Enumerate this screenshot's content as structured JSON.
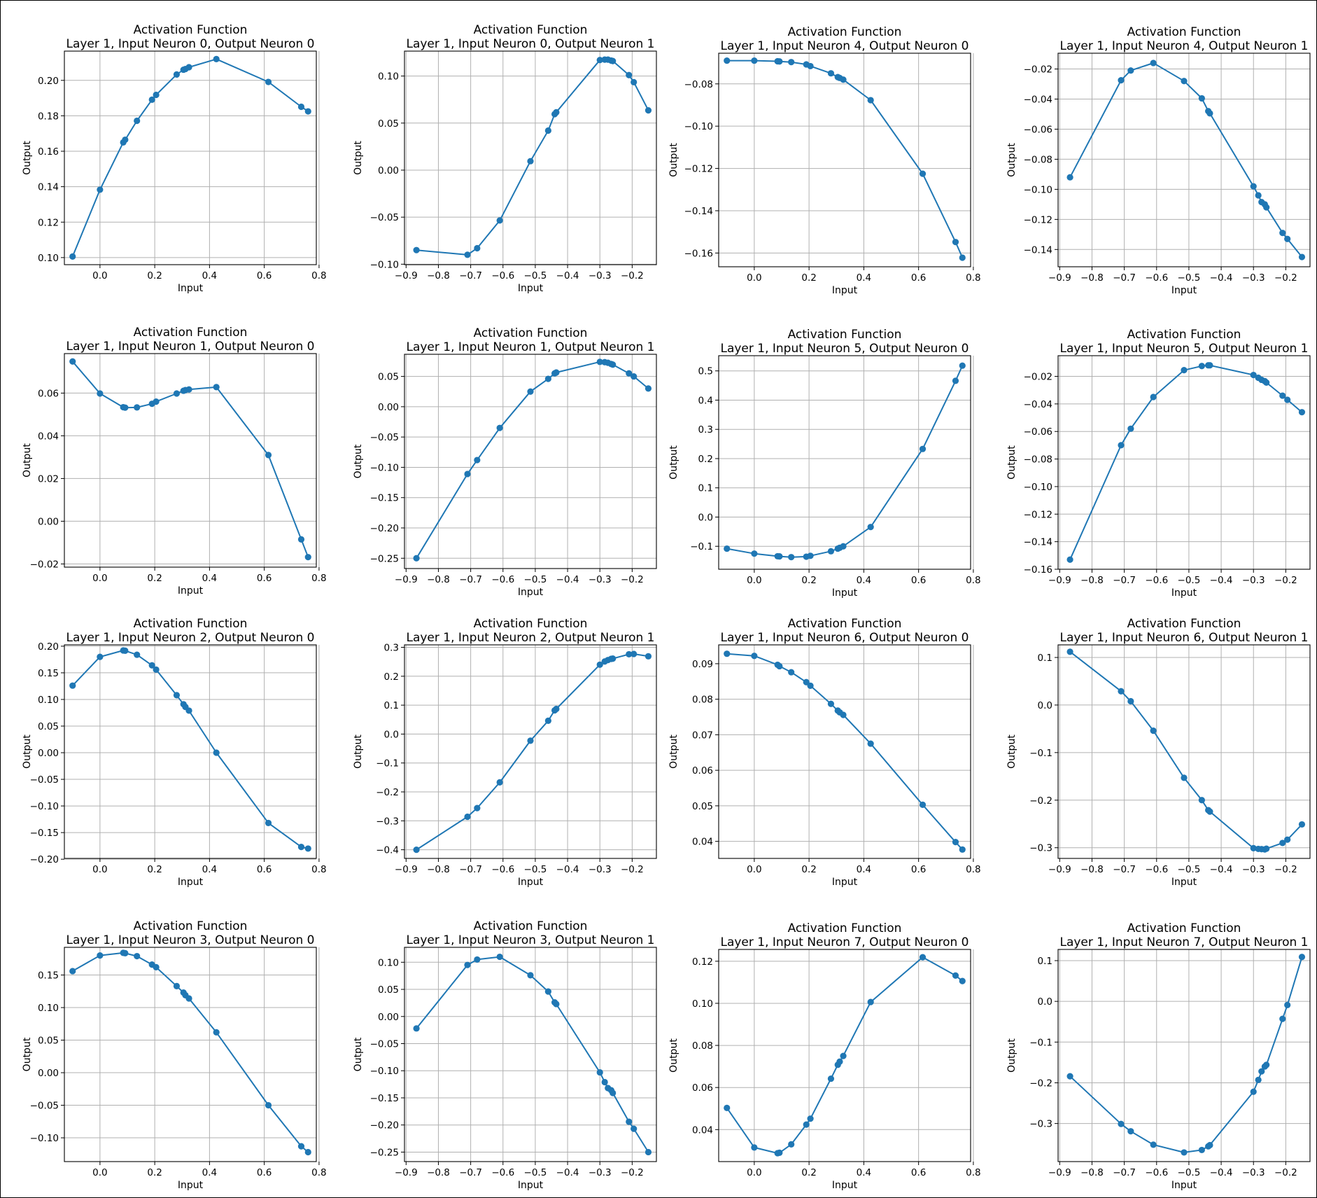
{
  "figure": {
    "title_prefix": "Activation Function",
    "xlabel": "Input",
    "ylabel": "Output"
  },
  "colors": {
    "series": "#1f77b4",
    "grid": "#b0b0b0",
    "axes": "#000000"
  },
  "chart_data": [
    {
      "type": "line",
      "title": "Activation Function",
      "subtitle": "Layer 1, Input Neuron 0, Output Neuron 0",
      "xlabel": "Input",
      "ylabel": "Output",
      "xlim": [
        -0.13,
        0.79
      ],
      "ylim": [
        0.096,
        0.2165
      ],
      "xticks": [
        0.0,
        0.2,
        0.4,
        0.6,
        0.8
      ],
      "yticks": [
        0.1,
        0.12,
        0.14,
        0.16,
        0.18,
        0.2
      ],
      "xdec": 1,
      "ydec": 2,
      "x": [
        -0.1,
        0.0,
        0.085,
        0.092,
        0.135,
        0.19,
        0.205,
        0.28,
        0.305,
        0.312,
        0.325,
        0.425,
        0.615,
        0.735,
        0.76
      ],
      "y": [
        0.1006,
        0.1383,
        0.165,
        0.1665,
        0.1772,
        0.1891,
        0.1918,
        0.2033,
        0.206,
        0.2064,
        0.2074,
        0.212,
        0.1991,
        0.1851,
        0.1825
      ]
    },
    {
      "type": "line",
      "title": "Activation Function",
      "subtitle": "Layer 1, Input Neuron 0, Output Neuron 1",
      "xlabel": "Input",
      "ylabel": "Output",
      "xlim": [
        -0.905,
        -0.125
      ],
      "ylim": [
        -0.1005,
        0.1265
      ],
      "xticks": [
        -0.9,
        -0.8,
        -0.7,
        -0.6,
        -0.5,
        -0.4,
        -0.3,
        -0.2
      ],
      "yticks": [
        -0.1,
        -0.05,
        0.0,
        0.05,
        0.1
      ],
      "xdec": 1,
      "ydec": 2,
      "x": [
        -0.868,
        -0.71,
        -0.68,
        -0.61,
        -0.515,
        -0.46,
        -0.44,
        -0.435,
        -0.3,
        -0.285,
        -0.275,
        -0.265,
        -0.26,
        -0.21,
        -0.195,
        -0.15
      ],
      "y": [
        -0.085,
        -0.09,
        -0.083,
        -0.0535,
        0.0095,
        0.042,
        0.0595,
        0.0615,
        0.117,
        0.1175,
        0.1175,
        0.1165,
        0.116,
        0.101,
        0.0935,
        0.0635
      ]
    },
    {
      "type": "line",
      "title": "Activation Function",
      "subtitle": "Layer 1, Input Neuron 4, Output Neuron 0",
      "xlabel": "Input",
      "ylabel": "Output",
      "xlim": [
        -0.13,
        0.79
      ],
      "ylim": [
        -0.1665,
        -0.0655
      ],
      "xticks": [
        0.0,
        0.2,
        0.4,
        0.6,
        0.8
      ],
      "yticks": [
        -0.16,
        -0.14,
        -0.12,
        -0.1,
        -0.08
      ],
      "xdec": 1,
      "ydec": 2,
      "x": [
        -0.1,
        0.0,
        0.085,
        0.092,
        0.135,
        0.19,
        0.205,
        0.28,
        0.305,
        0.312,
        0.325,
        0.425,
        0.615,
        0.735,
        0.76
      ],
      "y": [
        -0.069,
        -0.069,
        -0.0693,
        -0.0694,
        -0.0697,
        -0.0708,
        -0.0716,
        -0.075,
        -0.0768,
        -0.0772,
        -0.078,
        -0.0877,
        -0.1225,
        -0.1548,
        -0.1622
      ]
    },
    {
      "type": "line",
      "title": "Activation Function",
      "subtitle": "Layer 1, Input Neuron 4, Output Neuron 1",
      "xlabel": "Input",
      "ylabel": "Output",
      "xlim": [
        -0.905,
        -0.125
      ],
      "ylim": [
        -0.1515,
        -0.0095
      ],
      "xticks": [
        -0.9,
        -0.8,
        -0.7,
        -0.6,
        -0.5,
        -0.4,
        -0.3,
        -0.2
      ],
      "yticks": [
        -0.14,
        -0.12,
        -0.1,
        -0.08,
        -0.06,
        -0.04,
        -0.02
      ],
      "xdec": 1,
      "ydec": 2,
      "x": [
        -0.868,
        -0.71,
        -0.68,
        -0.61,
        -0.515,
        -0.46,
        -0.44,
        -0.435,
        -0.3,
        -0.285,
        -0.275,
        -0.265,
        -0.26,
        -0.21,
        -0.195,
        -0.15
      ],
      "y": [
        -0.092,
        -0.0275,
        -0.021,
        -0.016,
        -0.028,
        -0.0395,
        -0.048,
        -0.0495,
        -0.098,
        -0.104,
        -0.1085,
        -0.11,
        -0.112,
        -0.129,
        -0.133,
        -0.145
      ]
    },
    {
      "type": "line",
      "title": "Activation Function",
      "subtitle": "Layer 1, Input Neuron 1, Output Neuron 0",
      "xlabel": "Input",
      "ylabel": "Output",
      "xlim": [
        -0.13,
        0.79
      ],
      "ylim": [
        -0.0215,
        0.0785
      ],
      "xticks": [
        0.0,
        0.2,
        0.4,
        0.6,
        0.8
      ],
      "yticks": [
        -0.02,
        0.0,
        0.02,
        0.04,
        0.06
      ],
      "xdec": 1,
      "ydec": 2,
      "x": [
        -0.1,
        0.0,
        0.085,
        0.092,
        0.135,
        0.19,
        0.205,
        0.28,
        0.305,
        0.312,
        0.325,
        0.425,
        0.615,
        0.735,
        0.76
      ],
      "y": [
        0.0748,
        0.0598,
        0.0534,
        0.0532,
        0.0533,
        0.055,
        0.056,
        0.0598,
        0.0611,
        0.0614,
        0.0617,
        0.0628,
        0.031,
        -0.0085,
        -0.0168
      ]
    },
    {
      "type": "line",
      "title": "Activation Function",
      "subtitle": "Layer 1, Input Neuron 1, Output Neuron 1",
      "xlabel": "Input",
      "ylabel": "Output",
      "xlim": [
        -0.905,
        -0.125
      ],
      "ylim": [
        -0.267,
        0.0865
      ],
      "xticks": [
        -0.9,
        -0.8,
        -0.7,
        -0.6,
        -0.5,
        -0.4,
        -0.3,
        -0.2
      ],
      "yticks": [
        -0.25,
        -0.2,
        -0.15,
        -0.1,
        -0.05,
        0.0,
        0.05
      ],
      "xdec": 1,
      "ydec": 2,
      "x": [
        -0.868,
        -0.71,
        -0.68,
        -0.61,
        -0.515,
        -0.46,
        -0.44,
        -0.435,
        -0.3,
        -0.285,
        -0.275,
        -0.265,
        -0.26,
        -0.21,
        -0.195,
        -0.15
      ],
      "y": [
        -0.25,
        -0.111,
        -0.088,
        -0.035,
        0.025,
        0.046,
        0.055,
        0.0565,
        0.074,
        0.0735,
        0.0725,
        0.0705,
        0.0695,
        0.055,
        0.05,
        0.03
      ]
    },
    {
      "type": "line",
      "title": "Activation Function",
      "subtitle": "Layer 1, Input Neuron 5, Output Neuron 0",
      "xlabel": "Input",
      "ylabel": "Output",
      "xlim": [
        -0.13,
        0.79
      ],
      "ylim": [
        -0.1785,
        0.552
      ],
      "xticks": [
        0.0,
        0.2,
        0.4,
        0.6,
        0.8
      ],
      "yticks": [
        -0.1,
        0.0,
        0.1,
        0.2,
        0.3,
        0.4,
        0.5
      ],
      "xdec": 1,
      "ydec": 1,
      "x": [
        -0.1,
        0.0,
        0.085,
        0.092,
        0.135,
        0.19,
        0.205,
        0.28,
        0.305,
        0.312,
        0.325,
        0.425,
        0.615,
        0.735,
        0.76
      ],
      "y": [
        -0.108,
        -0.125,
        -0.134,
        -0.1345,
        -0.137,
        -0.1355,
        -0.1325,
        -0.117,
        -0.108,
        -0.105,
        -0.1,
        -0.034,
        0.233,
        0.466,
        0.518
      ]
    },
    {
      "type": "line",
      "title": "Activation Function",
      "subtitle": "Layer 1, Input Neuron 5, Output Neuron 1",
      "xlabel": "Input",
      "ylabel": "Output",
      "xlim": [
        -0.905,
        -0.125
      ],
      "ylim": [
        -0.16,
        -0.005
      ],
      "xticks": [
        -0.9,
        -0.8,
        -0.7,
        -0.6,
        -0.5,
        -0.4,
        -0.3,
        -0.2
      ],
      "yticks": [
        -0.16,
        -0.14,
        -0.12,
        -0.1,
        -0.08,
        -0.06,
        -0.04,
        -0.02
      ],
      "xdec": 1,
      "ydec": 2,
      "x": [
        -0.868,
        -0.71,
        -0.68,
        -0.61,
        -0.515,
        -0.46,
        -0.44,
        -0.435,
        -0.3,
        -0.285,
        -0.275,
        -0.265,
        -0.26,
        -0.21,
        -0.195,
        -0.15
      ],
      "y": [
        -0.153,
        -0.07,
        -0.058,
        -0.035,
        -0.0155,
        -0.0125,
        -0.012,
        -0.012,
        -0.019,
        -0.021,
        -0.0225,
        -0.0235,
        -0.0245,
        -0.034,
        -0.037,
        -0.046
      ]
    },
    {
      "type": "line",
      "title": "Activation Function",
      "subtitle": "Layer 1, Input Neuron 2, Output Neuron 0",
      "xlabel": "Input",
      "ylabel": "Output",
      "xlim": [
        -0.13,
        0.79
      ],
      "ylim": [
        -0.1985,
        0.2025
      ],
      "xticks": [
        0.0,
        0.2,
        0.4,
        0.6,
        0.8
      ],
      "yticks": [
        -0.2,
        -0.15,
        -0.1,
        -0.05,
        0.0,
        0.05,
        0.1,
        0.15,
        0.2
      ],
      "xdec": 1,
      "ydec": 2,
      "x": [
        -0.1,
        0.0,
        0.085,
        0.092,
        0.135,
        0.19,
        0.205,
        0.28,
        0.305,
        0.312,
        0.325,
        0.425,
        0.615,
        0.735,
        0.76
      ],
      "y": [
        0.126,
        0.18,
        0.192,
        0.1915,
        0.184,
        0.164,
        0.156,
        0.108,
        0.091,
        0.086,
        0.079,
        0.0,
        -0.132,
        -0.177,
        -0.18
      ]
    },
    {
      "type": "line",
      "title": "Activation Function",
      "subtitle": "Layer 1, Input Neuron 2, Output Neuron 1",
      "xlabel": "Input",
      "ylabel": "Output",
      "xlim": [
        -0.905,
        -0.125
      ],
      "ylim": [
        -0.43,
        0.3085
      ],
      "xticks": [
        -0.9,
        -0.8,
        -0.7,
        -0.6,
        -0.5,
        -0.4,
        -0.3,
        -0.2
      ],
      "yticks": [
        -0.4,
        -0.3,
        -0.2,
        -0.1,
        0.0,
        0.1,
        0.2,
        0.3
      ],
      "xdec": 1,
      "ydec": 1,
      "x": [
        -0.868,
        -0.71,
        -0.68,
        -0.61,
        -0.515,
        -0.46,
        -0.44,
        -0.435,
        -0.3,
        -0.285,
        -0.275,
        -0.265,
        -0.26,
        -0.21,
        -0.195,
        -0.15
      ],
      "y": [
        -0.4,
        -0.286,
        -0.256,
        -0.167,
        -0.023,
        0.046,
        0.082,
        0.087,
        0.24,
        0.251,
        0.256,
        0.26,
        0.261,
        0.276,
        0.277,
        0.269
      ]
    },
    {
      "type": "line",
      "title": "Activation Function",
      "subtitle": "Layer 1, Input Neuron 6, Output Neuron 0",
      "xlabel": "Input",
      "ylabel": "Output",
      "xlim": [
        -0.13,
        0.79
      ],
      "ylim": [
        0.0352,
        0.0953
      ],
      "xticks": [
        0.0,
        0.2,
        0.4,
        0.6,
        0.8
      ],
      "yticks": [
        0.04,
        0.05,
        0.06,
        0.07,
        0.08,
        0.09
      ],
      "xdec": 1,
      "ydec": 2,
      "x": [
        -0.1,
        0.0,
        0.085,
        0.092,
        0.135,
        0.19,
        0.205,
        0.28,
        0.305,
        0.312,
        0.325,
        0.425,
        0.615,
        0.735,
        0.76
      ],
      "y": [
        0.0928,
        0.0922,
        0.0897,
        0.0893,
        0.0876,
        0.0848,
        0.0838,
        0.0787,
        0.0768,
        0.0763,
        0.0756,
        0.0675,
        0.0503,
        0.0398,
        0.0377
      ]
    },
    {
      "type": "line",
      "title": "Activation Function",
      "subtitle": "Layer 1, Input Neuron 6, Output Neuron 1",
      "xlabel": "Input",
      "ylabel": "Output",
      "xlim": [
        -0.905,
        -0.125
      ],
      "ylim": [
        -0.3225,
        0.1265
      ],
      "xticks": [
        -0.9,
        -0.8,
        -0.7,
        -0.6,
        -0.5,
        -0.4,
        -0.3,
        -0.2
      ],
      "yticks": [
        -0.3,
        -0.2,
        -0.1,
        0.0,
        0.1
      ],
      "xdec": 1,
      "ydec": 1,
      "x": [
        -0.868,
        -0.71,
        -0.68,
        -0.61,
        -0.515,
        -0.46,
        -0.44,
        -0.435,
        -0.3,
        -0.285,
        -0.275,
        -0.265,
        -0.26,
        -0.21,
        -0.195,
        -0.15
      ],
      "y": [
        0.112,
        0.029,
        0.008,
        -0.054,
        -0.153,
        -0.2,
        -0.221,
        -0.224,
        -0.301,
        -0.3025,
        -0.303,
        -0.3035,
        -0.302,
        -0.29,
        -0.283,
        -0.251
      ]
    },
    {
      "type": "line",
      "title": "Activation Function",
      "subtitle": "Layer 1, Input Neuron 3, Output Neuron 0",
      "xlabel": "Input",
      "ylabel": "Output",
      "xlim": [
        -0.13,
        0.79
      ],
      "ylim": [
        -0.1365,
        0.1925
      ],
      "xticks": [
        0.0,
        0.2,
        0.4,
        0.6,
        0.8
      ],
      "yticks": [
        -0.1,
        -0.05,
        0.0,
        0.05,
        0.1,
        0.15
      ],
      "xdec": 1,
      "ydec": 2,
      "x": [
        -0.1,
        0.0,
        0.085,
        0.092,
        0.135,
        0.19,
        0.205,
        0.28,
        0.305,
        0.312,
        0.325,
        0.425,
        0.615,
        0.735,
        0.76
      ],
      "y": [
        0.156,
        0.18,
        0.184,
        0.1835,
        0.179,
        0.166,
        0.162,
        0.133,
        0.123,
        0.119,
        0.114,
        0.062,
        -0.05,
        -0.113,
        -0.122
      ]
    },
    {
      "type": "line",
      "title": "Activation Function",
      "subtitle": "Layer 1, Input Neuron 3, Output Neuron 1",
      "xlabel": "Input",
      "ylabel": "Output",
      "xlim": [
        -0.905,
        -0.125
      ],
      "ylim": [
        -0.2675,
        0.1275
      ],
      "xticks": [
        -0.9,
        -0.8,
        -0.7,
        -0.6,
        -0.5,
        -0.4,
        -0.3,
        -0.2
      ],
      "yticks": [
        -0.25,
        -0.2,
        -0.15,
        -0.1,
        -0.05,
        0.0,
        0.05,
        0.1
      ],
      "xdec": 1,
      "ydec": 2,
      "x": [
        -0.868,
        -0.71,
        -0.68,
        -0.61,
        -0.515,
        -0.46,
        -0.44,
        -0.435,
        -0.3,
        -0.285,
        -0.275,
        -0.265,
        -0.26,
        -0.21,
        -0.195,
        -0.15
      ],
      "y": [
        -0.022,
        0.095,
        0.105,
        0.11,
        0.076,
        0.046,
        0.026,
        0.023,
        -0.103,
        -0.121,
        -0.132,
        -0.136,
        -0.141,
        -0.194,
        -0.207,
        -0.25
      ]
    },
    {
      "type": "line",
      "title": "Activation Function",
      "subtitle": "Layer 1, Input Neuron 7, Output Neuron 0",
      "xlabel": "Input",
      "ylabel": "Output",
      "xlim": [
        -0.13,
        0.79
      ],
      "ylim": [
        0.0248,
        0.1256
      ],
      "xticks": [
        0.0,
        0.2,
        0.4,
        0.6,
        0.8
      ],
      "yticks": [
        0.04,
        0.06,
        0.08,
        0.1,
        0.12
      ],
      "xdec": 1,
      "ydec": 2,
      "x": [
        -0.1,
        0.0,
        0.085,
        0.092,
        0.135,
        0.19,
        0.205,
        0.28,
        0.305,
        0.312,
        0.325,
        0.425,
        0.615,
        0.735,
        0.76
      ],
      "y": [
        0.0503,
        0.0315,
        0.0288,
        0.029,
        0.033,
        0.0424,
        0.0452,
        0.0642,
        0.0708,
        0.0723,
        0.075,
        0.1006,
        0.1219,
        0.1132,
        0.1106
      ]
    },
    {
      "type": "line",
      "title": "Activation Function",
      "subtitle": "Layer 1, Input Neuron 7, Output Neuron 1",
      "xlabel": "Input",
      "ylabel": "Output",
      "xlim": [
        -0.905,
        -0.125
      ],
      "ylim": [
        -0.3935,
        0.1275
      ],
      "xticks": [
        -0.9,
        -0.8,
        -0.7,
        -0.6,
        -0.5,
        -0.4,
        -0.3,
        -0.2
      ],
      "yticks": [
        -0.3,
        -0.2,
        -0.1,
        0.0,
        0.1
      ],
      "xdec": 1,
      "ydec": 1,
      "x": [
        -0.868,
        -0.71,
        -0.68,
        -0.61,
        -0.515,
        -0.46,
        -0.44,
        -0.435,
        -0.3,
        -0.285,
        -0.275,
        -0.265,
        -0.26,
        -0.21,
        -0.195,
        -0.15
      ],
      "y": [
        -0.184,
        -0.301,
        -0.319,
        -0.352,
        -0.371,
        -0.365,
        -0.356,
        -0.353,
        -0.222,
        -0.193,
        -0.172,
        -0.16,
        -0.156,
        -0.043,
        -0.009,
        0.109
      ]
    }
  ]
}
